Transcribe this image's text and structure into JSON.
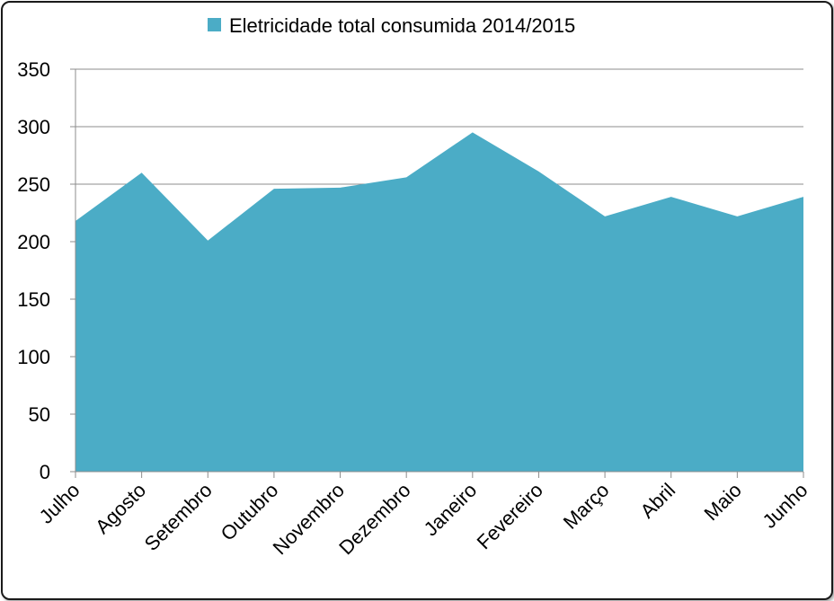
{
  "chart_data": {
    "type": "area",
    "categories": [
      "Julho",
      "Agosto",
      "Setembro",
      "Outubro",
      "Novembro",
      "Dezembro",
      "Janeiro",
      "Fevereiro",
      "Março",
      "Abril",
      "Maio",
      "Junho"
    ],
    "series": [
      {
        "name": "Eletricidade total consumida 2014/2015",
        "values": [
          218,
          260,
          201,
          246,
          247,
          256,
          295,
          261,
          222,
          239,
          222,
          239
        ],
        "color": "#4bacc6"
      }
    ],
    "ylim": [
      0,
      350
    ],
    "yticks": [
      "0",
      "50",
      "100",
      "150",
      "200",
      "250",
      "300",
      "350"
    ],
    "grid": true,
    "legend_position": "top"
  }
}
